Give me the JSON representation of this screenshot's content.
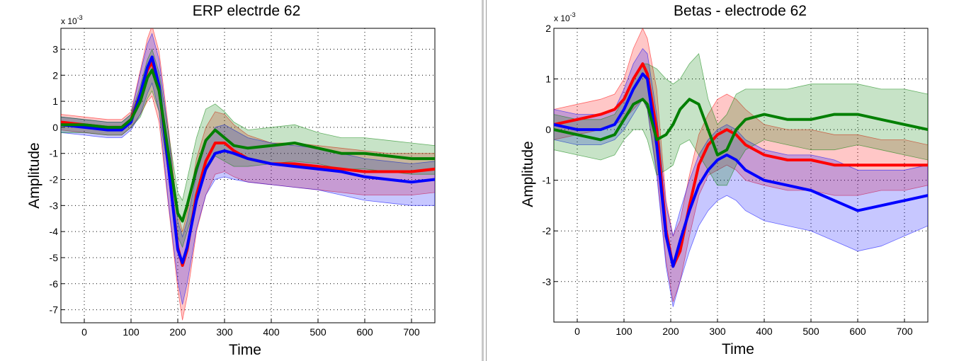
{
  "panels": [
    {
      "title": "ERP electrde 62",
      "xlabel": "Time",
      "ylabel": "Amplitude",
      "multiplier": "x 10",
      "multiplier_exp": "-3"
    },
    {
      "title": "Betas - electrode 62",
      "xlabel": "Time",
      "ylabel": "Amplitude",
      "multiplier": "x 10",
      "multiplier_exp": "-3"
    }
  ],
  "chart_data": [
    {
      "type": "line",
      "title": "ERP electrde 62",
      "xlabel": "Time",
      "ylabel": "Amplitude",
      "y_multiplier": "x 10^-3",
      "xlim": [
        -50,
        750
      ],
      "ylim": [
        -7.5,
        3.8
      ],
      "xticks": [
        0,
        100,
        200,
        300,
        400,
        500,
        600,
        700
      ],
      "yticks": [
        3,
        2,
        1,
        0,
        -1,
        -2,
        -3,
        -4,
        -5,
        -6,
        -7
      ],
      "grid": true,
      "shaded_band": "confidence band around each series",
      "x": [
        -50,
        0,
        50,
        80,
        100,
        120,
        135,
        145,
        160,
        180,
        200,
        210,
        220,
        240,
        260,
        280,
        300,
        320,
        350,
        400,
        450,
        500,
        550,
        600,
        650,
        700,
        750
      ],
      "series": [
        {
          "color": "#ff0000",
          "values": [
            0.2,
            0.1,
            0.0,
            0.0,
            0.3,
            1.3,
            2.2,
            2.5,
            1.5,
            -1.5,
            -4.6,
            -5.3,
            -4.7,
            -2.6,
            -1.3,
            -0.6,
            -0.6,
            -0.9,
            -1.2,
            -1.4,
            -1.4,
            -1.5,
            -1.6,
            -1.7,
            -1.7,
            -1.7,
            -1.6
          ],
          "upper": [
            0.5,
            0.4,
            0.3,
            0.3,
            0.6,
            2.2,
            3.4,
            3.9,
            2.9,
            0.0,
            -3.3,
            -4.0,
            -3.3,
            -1.2,
            0.0,
            0.6,
            0.5,
            0.1,
            -0.3,
            -0.6,
            -0.6,
            -0.7,
            -0.8,
            -0.9,
            -1.0,
            -1.0,
            -1.0
          ],
          "lower": [
            -0.1,
            -0.2,
            -0.3,
            -0.3,
            0.0,
            0.5,
            1.0,
            1.2,
            0.2,
            -3.0,
            -6.2,
            -7.4,
            -6.5,
            -4.0,
            -2.6,
            -1.8,
            -1.7,
            -1.9,
            -2.1,
            -2.2,
            -2.3,
            -2.4,
            -2.5,
            -2.6,
            -2.6,
            -2.6,
            -2.5
          ]
        },
        {
          "color": "#0000ff",
          "values": [
            0.1,
            0.0,
            -0.1,
            -0.1,
            0.2,
            1.3,
            2.3,
            2.7,
            1.6,
            -1.5,
            -4.7,
            -5.2,
            -4.6,
            -2.8,
            -1.6,
            -1.0,
            -0.9,
            -1.0,
            -1.2,
            -1.4,
            -1.5,
            -1.6,
            -1.7,
            -1.9,
            -2.0,
            -2.1,
            -2.0
          ],
          "upper": [
            0.4,
            0.3,
            0.2,
            0.2,
            0.5,
            2.1,
            3.2,
            3.6,
            2.6,
            -0.2,
            -3.6,
            -4.2,
            -3.6,
            -1.8,
            -0.6,
            0.0,
            0.1,
            -0.1,
            -0.4,
            -0.6,
            -0.7,
            -0.8,
            -1.0,
            -1.2,
            -1.3,
            -1.4,
            -1.3
          ],
          "lower": [
            -0.2,
            -0.3,
            -0.4,
            -0.4,
            -0.1,
            0.5,
            1.3,
            1.7,
            0.6,
            -2.9,
            -5.9,
            -6.8,
            -6.0,
            -3.9,
            -2.6,
            -2.0,
            -1.9,
            -2.0,
            -2.1,
            -2.2,
            -2.3,
            -2.4,
            -2.6,
            -2.8,
            -2.9,
            -3.0,
            -3.0
          ]
        },
        {
          "color": "#007f00",
          "values": [
            0.1,
            0.1,
            0.0,
            0.0,
            0.3,
            1.0,
            1.9,
            2.2,
            1.4,
            -1.0,
            -3.3,
            -3.6,
            -3.0,
            -1.6,
            -0.5,
            -0.1,
            -0.4,
            -0.7,
            -0.8,
            -0.7,
            -0.6,
            -0.8,
            -1.0,
            -1.0,
            -1.1,
            -1.2,
            -1.2
          ],
          "upper": [
            0.4,
            0.3,
            0.2,
            0.2,
            0.5,
            1.6,
            2.6,
            3.0,
            2.1,
            -0.2,
            -2.5,
            -2.8,
            -2.0,
            -0.4,
            0.7,
            0.9,
            0.6,
            0.2,
            -0.1,
            0.0,
            0.1,
            -0.2,
            -0.4,
            -0.4,
            -0.5,
            -0.6,
            -0.7
          ],
          "lower": [
            -0.2,
            -0.2,
            -0.3,
            -0.3,
            0.0,
            0.4,
            1.1,
            1.4,
            0.6,
            -1.8,
            -4.2,
            -4.6,
            -4.0,
            -2.8,
            -1.7,
            -1.1,
            -1.3,
            -1.5,
            -1.5,
            -1.4,
            -1.3,
            -1.4,
            -1.6,
            -1.6,
            -1.7,
            -1.8,
            -1.8
          ]
        }
      ]
    },
    {
      "type": "line",
      "title": "Betas - electrode 62",
      "xlabel": "Time",
      "ylabel": "Amplitude",
      "y_multiplier": "x 10^-3",
      "xlim": [
        -50,
        750
      ],
      "ylim": [
        -3.8,
        2.0
      ],
      "xticks": [
        0,
        100,
        200,
        300,
        400,
        500,
        600,
        700
      ],
      "yticks": [
        2,
        1,
        0,
        -1,
        -2,
        -3
      ],
      "grid": true,
      "shaded_band": "confidence band around each series",
      "x": [
        -50,
        0,
        50,
        80,
        100,
        120,
        140,
        150,
        170,
        190,
        205,
        220,
        240,
        260,
        280,
        300,
        320,
        340,
        360,
        400,
        450,
        500,
        550,
        600,
        650,
        700,
        750
      ],
      "series": [
        {
          "color": "#ff0000",
          "values": [
            0.1,
            0.2,
            0.3,
            0.4,
            0.6,
            1.0,
            1.3,
            1.1,
            0.0,
            -2.0,
            -2.7,
            -2.4,
            -1.5,
            -0.7,
            -0.3,
            -0.1,
            0.0,
            -0.1,
            -0.3,
            -0.5,
            -0.6,
            -0.6,
            -0.7,
            -0.7,
            -0.7,
            -0.7,
            -0.7
          ],
          "upper": [
            0.4,
            0.5,
            0.6,
            0.7,
            1.0,
            1.6,
            2.0,
            1.8,
            0.8,
            -1.4,
            -2.1,
            -1.8,
            -0.9,
            -0.1,
            0.3,
            0.6,
            0.7,
            0.6,
            0.4,
            0.1,
            0.0,
            0.0,
            -0.1,
            -0.1,
            -0.2,
            -0.2,
            -0.3
          ],
          "lower": [
            -0.2,
            -0.1,
            0.0,
            0.1,
            0.2,
            0.4,
            0.6,
            0.4,
            -0.8,
            -2.6,
            -3.4,
            -3.0,
            -2.1,
            -1.3,
            -0.9,
            -0.8,
            -0.7,
            -0.8,
            -1.0,
            -1.1,
            -1.2,
            -1.2,
            -1.3,
            -1.3,
            -1.2,
            -1.2,
            -1.1
          ]
        },
        {
          "color": "#0000ff",
          "values": [
            0.1,
            0.0,
            0.0,
            0.1,
            0.4,
            0.8,
            1.1,
            1.0,
            -0.3,
            -2.1,
            -2.7,
            -2.2,
            -1.6,
            -1.1,
            -0.8,
            -0.6,
            -0.5,
            -0.6,
            -0.8,
            -1.0,
            -1.1,
            -1.2,
            -1.4,
            -1.6,
            -1.5,
            -1.4,
            -1.3
          ],
          "upper": [
            0.4,
            0.3,
            0.3,
            0.4,
            0.8,
            1.3,
            1.6,
            1.5,
            0.3,
            -1.5,
            -2.1,
            -1.6,
            -1.0,
            -0.5,
            -0.2,
            0.0,
            0.1,
            0.0,
            -0.2,
            -0.4,
            -0.5,
            -0.5,
            -0.6,
            -0.8,
            -0.8,
            -0.8,
            -0.7
          ],
          "lower": [
            -0.2,
            -0.3,
            -0.3,
            -0.2,
            0.0,
            0.3,
            0.6,
            0.4,
            -0.9,
            -2.7,
            -3.5,
            -3.0,
            -2.4,
            -1.9,
            -1.6,
            -1.4,
            -1.3,
            -1.4,
            -1.6,
            -1.8,
            -1.9,
            -2.0,
            -2.2,
            -2.4,
            -2.3,
            -2.1,
            -1.9
          ]
        },
        {
          "color": "#007f00",
          "values": [
            0.0,
            -0.1,
            -0.2,
            -0.1,
            0.2,
            0.5,
            0.6,
            0.5,
            -0.2,
            -0.1,
            0.1,
            0.4,
            0.6,
            0.5,
            0.0,
            -0.5,
            -0.4,
            0.0,
            0.2,
            0.3,
            0.2,
            0.2,
            0.3,
            0.3,
            0.2,
            0.1,
            0.0
          ],
          "upper": [
            0.3,
            0.2,
            0.2,
            0.3,
            0.6,
            1.0,
            1.3,
            1.3,
            1.2,
            1.0,
            0.9,
            1.0,
            1.3,
            1.5,
            0.6,
            0.1,
            0.3,
            0.7,
            0.8,
            0.8,
            0.8,
            0.9,
            0.9,
            0.9,
            0.8,
            0.8,
            0.7
          ],
          "lower": [
            -0.4,
            -0.5,
            -0.6,
            -0.5,
            -0.2,
            0.0,
            0.0,
            -0.2,
            -0.9,
            -0.8,
            -0.7,
            -0.3,
            -0.2,
            -0.5,
            -0.8,
            -1.1,
            -1.1,
            -0.7,
            -0.4,
            -0.2,
            -0.3,
            -0.4,
            -0.4,
            -0.3,
            -0.4,
            -0.5,
            -0.6
          ]
        }
      ]
    }
  ]
}
